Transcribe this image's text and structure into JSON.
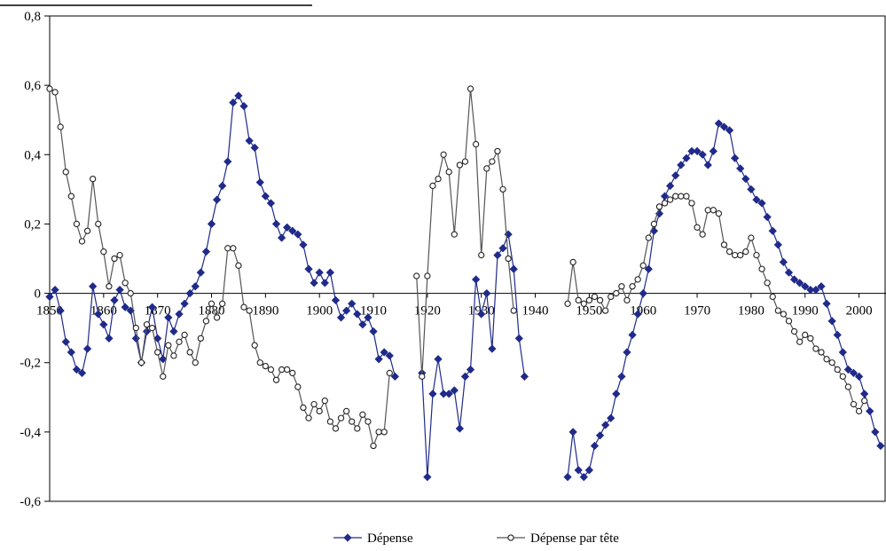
{
  "chart_data": {
    "type": "line",
    "title": "",
    "xlabel": "",
    "ylabel": "",
    "xlim": [
      1850,
      2005
    ],
    "ylim": [
      -0.6,
      0.8
    ],
    "x_ticks": [
      1850,
      1860,
      1870,
      1880,
      1890,
      1900,
      1910,
      1920,
      1930,
      1940,
      1950,
      1960,
      1970,
      1980,
      1990,
      2000
    ],
    "x_tick_labels": [
      "1850",
      "1860",
      "1870",
      "1880",
      "1890",
      "1900",
      "1910",
      "1920",
      "1930",
      "1940",
      "1950",
      "1960",
      "1970",
      "1980",
      "1990",
      "2000"
    ],
    "y_ticks": [
      -0.6,
      -0.4,
      -0.2,
      0,
      0.2,
      0.4,
      0.6,
      0.8
    ],
    "y_tick_labels": [
      "-0,6",
      "-0,4",
      "-0,2",
      "0",
      "0,2",
      "0,4",
      "0,6",
      "0,8"
    ],
    "grid": false,
    "legend_position": "bottom",
    "colors": {
      "depense": "#1f2a8a",
      "depense_tete": "#555555"
    },
    "series": [
      {
        "name": "Dépense",
        "points": [
          [
            1850,
            -0.01
          ],
          [
            1851,
            0.01
          ],
          [
            1852,
            -0.05
          ],
          [
            1853,
            -0.14
          ],
          [
            1854,
            -0.17
          ],
          [
            1855,
            -0.22
          ],
          [
            1856,
            -0.23
          ],
          [
            1857,
            -0.16
          ],
          [
            1858,
            0.02
          ],
          [
            1859,
            -0.06
          ],
          [
            1860,
            -0.09
          ],
          [
            1861,
            -0.13
          ],
          [
            1862,
            -0.02
          ],
          [
            1863,
            0.01
          ],
          [
            1864,
            -0.04
          ],
          [
            1865,
            -0.05
          ],
          [
            1866,
            -0.13
          ],
          [
            1867,
            -0.2
          ],
          [
            1868,
            -0.11
          ],
          [
            1869,
            -0.04
          ],
          [
            1870,
            -0.13
          ],
          [
            1871,
            -0.19
          ],
          [
            1872,
            -0.07
          ],
          [
            1873,
            -0.11
          ],
          [
            1874,
            -0.06
          ],
          [
            1875,
            -0.03
          ],
          [
            1876,
            0.0
          ],
          [
            1877,
            0.02
          ],
          [
            1878,
            0.06
          ],
          [
            1879,
            0.12
          ],
          [
            1880,
            0.2
          ],
          [
            1881,
            0.27
          ],
          [
            1882,
            0.31
          ],
          [
            1883,
            0.38
          ],
          [
            1884,
            0.55
          ],
          [
            1885,
            0.57
          ],
          [
            1886,
            0.54
          ],
          [
            1887,
            0.44
          ],
          [
            1888,
            0.42
          ],
          [
            1889,
            0.32
          ],
          [
            1890,
            0.28
          ],
          [
            1891,
            0.26
          ],
          [
            1892,
            0.2
          ],
          [
            1893,
            0.16
          ],
          [
            1894,
            0.19
          ],
          [
            1895,
            0.18
          ],
          [
            1896,
            0.17
          ],
          [
            1897,
            0.14
          ],
          [
            1898,
            0.07
          ],
          [
            1899,
            0.03
          ],
          [
            1900,
            0.06
          ],
          [
            1901,
            0.03
          ],
          [
            1902,
            0.06
          ],
          [
            1903,
            -0.02
          ],
          [
            1904,
            -0.07
          ],
          [
            1905,
            -0.05
          ],
          [
            1906,
            -0.03
          ],
          [
            1907,
            -0.06
          ],
          [
            1908,
            -0.09
          ],
          [
            1909,
            -0.07
          ],
          [
            1910,
            -0.11
          ],
          [
            1911,
            -0.19
          ],
          [
            1912,
            -0.17
          ],
          [
            1913,
            -0.18
          ],
          [
            1914,
            -0.24
          ],
          null,
          [
            1919,
            -0.23
          ],
          [
            1920,
            -0.53
          ],
          [
            1921,
            -0.29
          ],
          [
            1922,
            -0.19
          ],
          [
            1923,
            -0.29
          ],
          [
            1924,
            -0.29
          ],
          [
            1925,
            -0.28
          ],
          [
            1926,
            -0.39
          ],
          [
            1927,
            -0.24
          ],
          [
            1928,
            -0.22
          ],
          [
            1929,
            0.04
          ],
          [
            1930,
            -0.06
          ],
          [
            1931,
            0.0
          ],
          [
            1932,
            -0.16
          ],
          [
            1933,
            0.11
          ],
          [
            1934,
            0.13
          ],
          [
            1935,
            0.17
          ],
          [
            1936,
            0.07
          ],
          [
            1937,
            -0.13
          ],
          [
            1938,
            -0.24
          ],
          null,
          [
            1946,
            -0.53
          ],
          [
            1947,
            -0.4
          ],
          [
            1948,
            -0.51
          ],
          [
            1949,
            -0.53
          ],
          [
            1950,
            -0.51
          ],
          [
            1951,
            -0.44
          ],
          [
            1952,
            -0.41
          ],
          [
            1953,
            -0.38
          ],
          [
            1954,
            -0.36
          ],
          [
            1955,
            -0.29
          ],
          [
            1956,
            -0.24
          ],
          [
            1957,
            -0.17
          ],
          [
            1958,
            -0.12
          ],
          [
            1959,
            -0.06
          ],
          [
            1960,
            0.0
          ],
          [
            1961,
            0.07
          ],
          [
            1962,
            0.18
          ],
          [
            1963,
            0.23
          ],
          [
            1964,
            0.28
          ],
          [
            1965,
            0.31
          ],
          [
            1966,
            0.34
          ],
          [
            1967,
            0.37
          ],
          [
            1968,
            0.39
          ],
          [
            1969,
            0.41
          ],
          [
            1970,
            0.41
          ],
          [
            1971,
            0.4
          ],
          [
            1972,
            0.37
          ],
          [
            1973,
            0.41
          ],
          [
            1974,
            0.49
          ],
          [
            1975,
            0.48
          ],
          [
            1976,
            0.47
          ],
          [
            1977,
            0.39
          ],
          [
            1978,
            0.36
          ],
          [
            1979,
            0.33
          ],
          [
            1980,
            0.3
          ],
          [
            1981,
            0.27
          ],
          [
            1982,
            0.26
          ],
          [
            1983,
            0.22
          ],
          [
            1984,
            0.18
          ],
          [
            1985,
            0.14
          ],
          [
            1986,
            0.09
          ],
          [
            1987,
            0.06
          ],
          [
            1988,
            0.04
          ],
          [
            1989,
            0.03
          ],
          [
            1990,
            0.02
          ],
          [
            1991,
            0.01
          ],
          [
            1992,
            0.01
          ],
          [
            1993,
            0.02
          ],
          [
            1994,
            -0.03
          ],
          [
            1995,
            -0.08
          ],
          [
            1996,
            -0.12
          ],
          [
            1997,
            -0.17
          ],
          [
            1998,
            -0.22
          ],
          [
            1999,
            -0.23
          ],
          [
            2000,
            -0.24
          ],
          [
            2001,
            -0.29
          ],
          [
            2002,
            -0.34
          ],
          [
            2003,
            -0.4
          ],
          [
            2004,
            -0.44
          ]
        ]
      },
      {
        "name": "Dépense par tête",
        "points": [
          [
            1850,
            0.59
          ],
          [
            1851,
            0.58
          ],
          [
            1852,
            0.48
          ],
          [
            1853,
            0.35
          ],
          [
            1854,
            0.28
          ],
          [
            1855,
            0.2
          ],
          [
            1856,
            0.15
          ],
          [
            1857,
            0.18
          ],
          [
            1858,
            0.33
          ],
          [
            1859,
            0.2
          ],
          [
            1860,
            0.12
          ],
          [
            1861,
            0.02
          ],
          [
            1862,
            0.1
          ],
          [
            1863,
            0.11
          ],
          [
            1864,
            0.03
          ],
          [
            1865,
            0.0
          ],
          [
            1866,
            -0.1
          ],
          [
            1867,
            -0.2
          ],
          [
            1868,
            -0.09
          ],
          [
            1869,
            -0.1
          ],
          [
            1870,
            -0.17
          ],
          [
            1871,
            -0.24
          ],
          [
            1872,
            -0.15
          ],
          [
            1873,
            -0.18
          ],
          [
            1874,
            -0.14
          ],
          [
            1875,
            -0.12
          ],
          [
            1876,
            -0.17
          ],
          [
            1877,
            -0.2
          ],
          [
            1878,
            -0.13
          ],
          [
            1879,
            -0.08
          ],
          [
            1880,
            -0.03
          ],
          [
            1881,
            -0.07
          ],
          [
            1882,
            -0.03
          ],
          [
            1883,
            0.13
          ],
          [
            1884,
            0.13
          ],
          [
            1885,
            0.08
          ],
          [
            1886,
            -0.04
          ],
          [
            1887,
            -0.05
          ],
          [
            1888,
            -0.15
          ],
          [
            1889,
            -0.2
          ],
          [
            1890,
            -0.21
          ],
          [
            1891,
            -0.22
          ],
          [
            1892,
            -0.25
          ],
          [
            1893,
            -0.22
          ],
          [
            1894,
            -0.22
          ],
          [
            1895,
            -0.23
          ],
          [
            1896,
            -0.27
          ],
          [
            1897,
            -0.33
          ],
          [
            1898,
            -0.36
          ],
          [
            1899,
            -0.32
          ],
          [
            1900,
            -0.34
          ],
          [
            1901,
            -0.31
          ],
          [
            1902,
            -0.37
          ],
          [
            1903,
            -0.39
          ],
          [
            1904,
            -0.36
          ],
          [
            1905,
            -0.34
          ],
          [
            1906,
            -0.37
          ],
          [
            1907,
            -0.39
          ],
          [
            1908,
            -0.35
          ],
          [
            1909,
            -0.37
          ],
          [
            1910,
            -0.44
          ],
          [
            1911,
            -0.4
          ],
          [
            1912,
            -0.4
          ],
          [
            1913,
            -0.23
          ],
          null,
          [
            1918,
            0.05
          ],
          [
            1919,
            -0.24
          ],
          [
            1920,
            0.05
          ],
          [
            1921,
            0.31
          ],
          [
            1922,
            0.33
          ],
          [
            1923,
            0.4
          ],
          [
            1924,
            0.35
          ],
          [
            1925,
            0.17
          ],
          [
            1926,
            0.37
          ],
          [
            1927,
            0.38
          ],
          [
            1928,
            0.59
          ],
          [
            1929,
            0.43
          ],
          [
            1930,
            0.11
          ],
          [
            1931,
            0.36
          ],
          [
            1932,
            0.38
          ],
          [
            1933,
            0.41
          ],
          [
            1934,
            0.3
          ],
          [
            1935,
            0.1
          ],
          [
            1936,
            -0.05
          ],
          null,
          [
            1946,
            -0.03
          ],
          [
            1947,
            0.09
          ],
          [
            1948,
            -0.02
          ],
          [
            1949,
            -0.03
          ],
          [
            1950,
            -0.02
          ],
          [
            1951,
            -0.01
          ],
          [
            1952,
            -0.02
          ],
          [
            1953,
            -0.05
          ],
          [
            1954,
            -0.01
          ],
          [
            1955,
            0.0
          ],
          [
            1956,
            0.02
          ],
          [
            1957,
            -0.02
          ],
          [
            1958,
            0.02
          ],
          [
            1959,
            0.04
          ],
          [
            1960,
            0.08
          ],
          [
            1961,
            0.16
          ],
          [
            1962,
            0.2
          ],
          [
            1963,
            0.25
          ],
          [
            1964,
            0.26
          ],
          [
            1965,
            0.27
          ],
          [
            1966,
            0.28
          ],
          [
            1967,
            0.28
          ],
          [
            1968,
            0.28
          ],
          [
            1969,
            0.26
          ],
          [
            1970,
            0.19
          ],
          [
            1971,
            0.17
          ],
          [
            1972,
            0.24
          ],
          [
            1973,
            0.24
          ],
          [
            1974,
            0.23
          ],
          [
            1975,
            0.14
          ],
          [
            1976,
            0.12
          ],
          [
            1977,
            0.11
          ],
          [
            1978,
            0.11
          ],
          [
            1979,
            0.12
          ],
          [
            1980,
            0.16
          ],
          [
            1981,
            0.11
          ],
          [
            1982,
            0.07
          ],
          [
            1983,
            0.03
          ],
          [
            1984,
            -0.01
          ],
          [
            1985,
            -0.05
          ],
          [
            1986,
            -0.06
          ],
          [
            1987,
            -0.08
          ],
          [
            1988,
            -0.11
          ],
          [
            1989,
            -0.14
          ],
          [
            1990,
            -0.12
          ],
          [
            1991,
            -0.13
          ],
          [
            1992,
            -0.16
          ],
          [
            1993,
            -0.17
          ],
          [
            1994,
            -0.19
          ],
          [
            1995,
            -0.2
          ],
          [
            1996,
            -0.22
          ],
          [
            1997,
            -0.24
          ],
          [
            1998,
            -0.27
          ],
          [
            1999,
            -0.32
          ],
          [
            2000,
            -0.34
          ],
          [
            2001,
            -0.31
          ]
        ]
      }
    ]
  }
}
